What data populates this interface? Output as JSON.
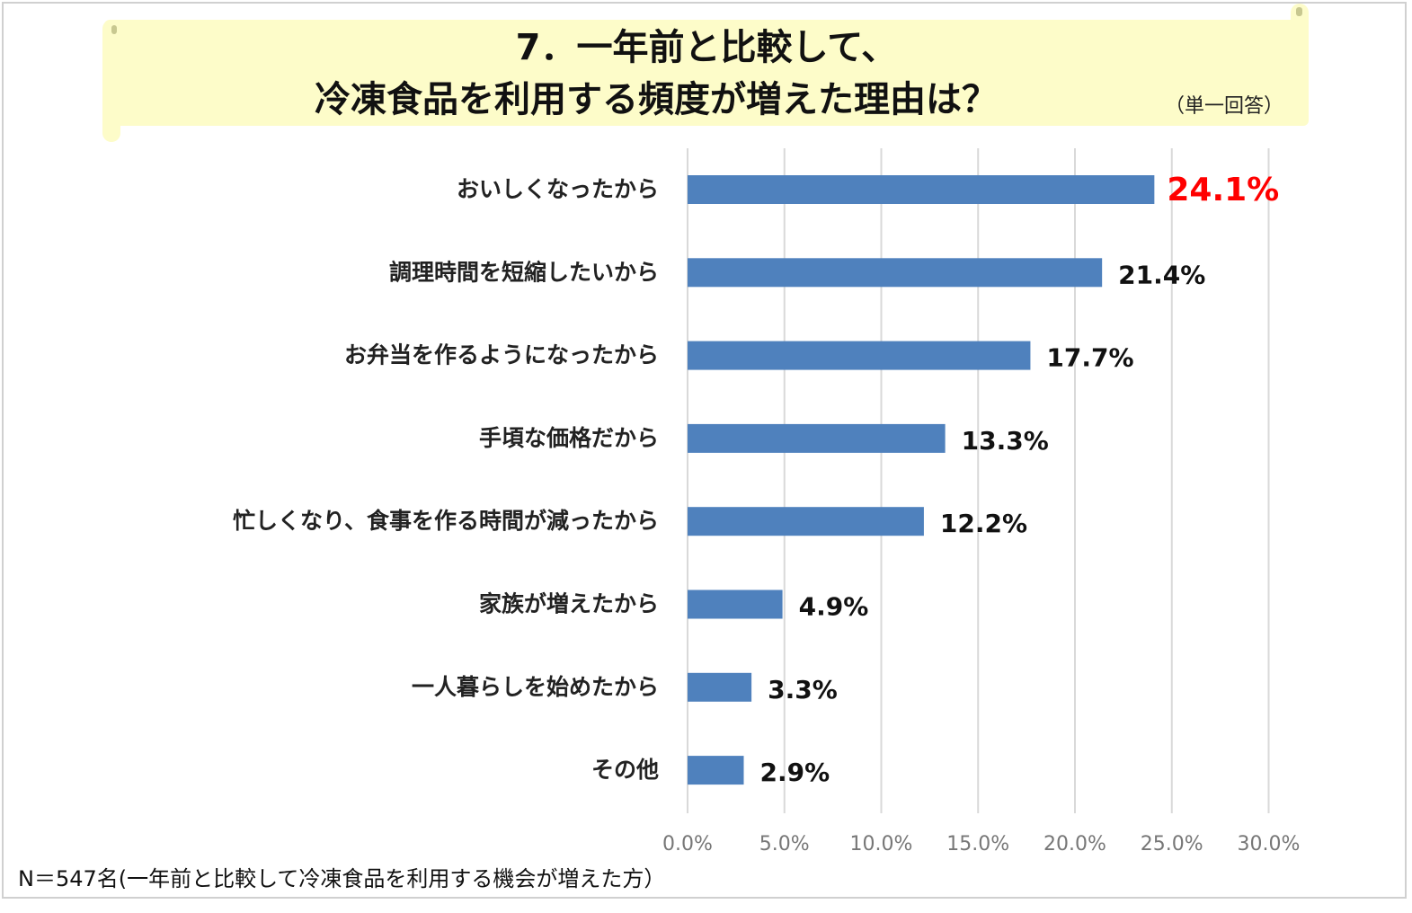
{
  "title": {
    "line1": "7．一年前と比較して、",
    "line2": "冷凍食品を利用する頻度が増えた理由は？"
  },
  "subtitle": "（単一回答）",
  "footnote": "N＝547名(一年前と比較して冷凍食品を利用する機会が増えた方）",
  "chart_data": {
    "type": "bar",
    "orientation": "horizontal",
    "categories": [
      "おいしくなったから",
      "調理時間を短縮したいから",
      "お弁当を作るようになったから",
      "手頃な価格だから",
      "忙しくなり、食事を作る時間が減ったから",
      "家族が増えたから",
      "一人暮らしを始めたから",
      "その他"
    ],
    "values": [
      24.1,
      21.4,
      17.7,
      13.3,
      12.2,
      4.9,
      3.3,
      2.9
    ],
    "data_labels": [
      "24.1%",
      "21.4%",
      "17.7%",
      "13.3%",
      "12.2%",
      "4.9%",
      "3.3%",
      "2.9%"
    ],
    "xlim": [
      0,
      30
    ],
    "x_ticks": [
      0,
      5,
      10,
      15,
      20,
      25,
      30
    ],
    "x_tick_labels": [
      "0.0%",
      "5.0%",
      "10.0%",
      "15.0%",
      "20.0%",
      "25.0%",
      "30.0%"
    ],
    "grid": true,
    "bar_color": "#4f81bd",
    "highlight_color": "#ff0000",
    "highlight_index": 0
  }
}
